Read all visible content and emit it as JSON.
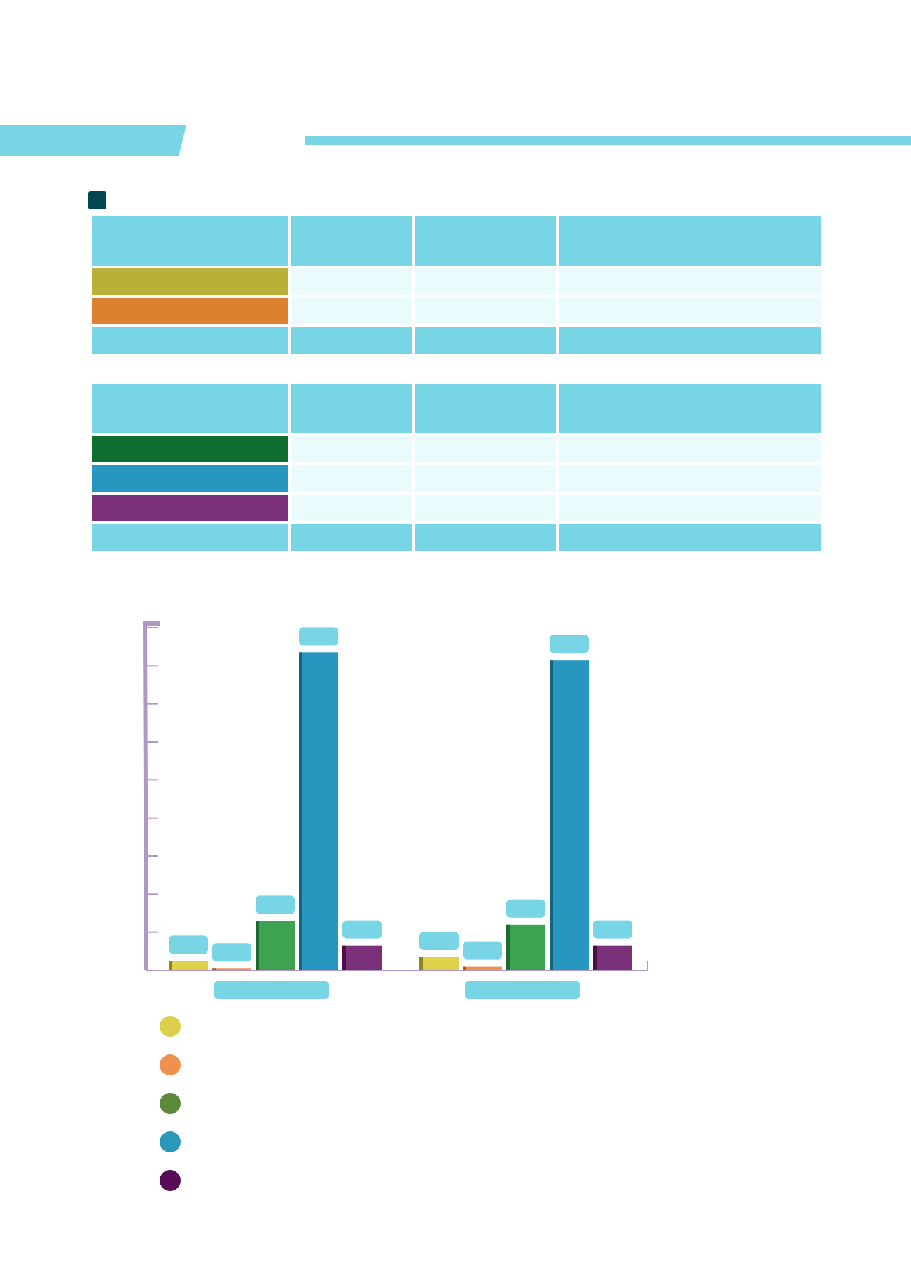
{
  "colors": {
    "accent": "#77d5e5",
    "dark_teal": "#004751",
    "row_fill": "#e9fbfd",
    "axis": "#b197c7"
  },
  "header": {
    "title": ""
  },
  "tables": [
    {
      "header_cells": [
        "",
        "",
        "",
        ""
      ],
      "rows": [
        {
          "color": "#b9b03a",
          "cells": [
            "",
            "",
            "",
            ""
          ]
        },
        {
          "color": "#db8230",
          "cells": [
            "",
            "",
            "",
            ""
          ]
        }
      ],
      "total_cells": [
        "",
        "",
        "",
        ""
      ]
    },
    {
      "header_cells": [
        "",
        "",
        "",
        ""
      ],
      "rows": [
        {
          "color": "#0e6e2f",
          "cells": [
            "",
            "",
            "",
            ""
          ]
        },
        {
          "color": "#2897c0",
          "cells": [
            "",
            "",
            "",
            ""
          ]
        },
        {
          "color": "#7b3179",
          "cells": [
            "",
            "",
            "",
            ""
          ]
        }
      ],
      "total_cells": [
        "",
        "",
        "",
        ""
      ]
    }
  ],
  "chart_data": {
    "type": "bar",
    "title": "",
    "xlabel": "",
    "ylabel": "",
    "ylim": [
      0,
      9
    ],
    "categories": [
      "",
      ""
    ],
    "series": [
      {
        "name": "",
        "color": "#ddd24a",
        "side_color": "#8a8423",
        "legend_color": "#dad04b",
        "values": [
          0.25,
          0.35
        ]
      },
      {
        "name": "",
        "color": "#f0924f",
        "side_color": "#a35a26",
        "legend_color": "#ef914d",
        "values": [
          0.05,
          0.1
        ]
      },
      {
        "name": "",
        "color": "#3ea350",
        "side_color": "#1e6a35",
        "legend_color": "#5b8a39",
        "values": [
          1.3,
          1.2
        ]
      },
      {
        "name": "",
        "color": "#2897c0",
        "side_color": "#15647d",
        "legend_color": "#2a98b8",
        "values": [
          8.35,
          8.15
        ]
      },
      {
        "name": "",
        "color": "#7b3179",
        "side_color": "#4a0f4b",
        "legend_color": "#570d55",
        "values": [
          0.65,
          0.65
        ]
      }
    ],
    "data_labels": [
      [
        "",
        "",
        "",
        "",
        ""
      ],
      [
        "",
        "",
        "",
        "",
        ""
      ]
    ],
    "grid": false,
    "legend": "bottom-left"
  }
}
